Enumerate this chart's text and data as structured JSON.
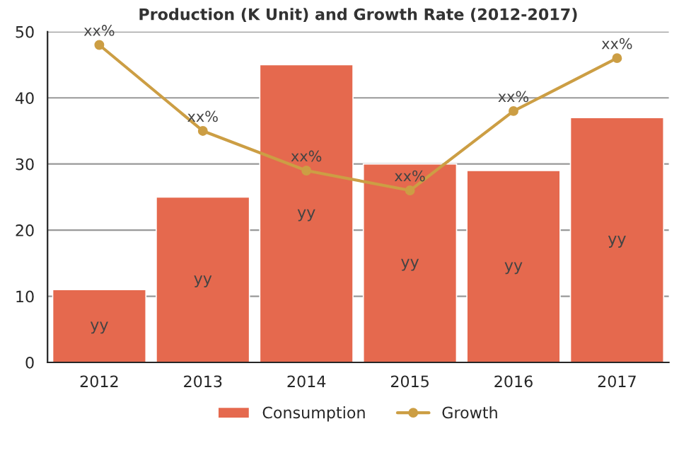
{
  "chart_data": {
    "type": "bar",
    "title": "Production (K Unit) and Growth Rate (2012-2017)",
    "categories": [
      "2012",
      "2013",
      "2014",
      "2015",
      "2016",
      "2017"
    ],
    "series": [
      {
        "name": "Consumption",
        "color": "#e5694e",
        "values": [
          11,
          25,
          45,
          30,
          29,
          37
        ],
        "value_labels": [
          "yy",
          "yy",
          "yy",
          "yy",
          "yy",
          "yy"
        ]
      },
      {
        "name": "Growth",
        "type": "line",
        "color": "#cc9e44",
        "values": [
          48,
          35,
          29,
          26,
          38,
          46
        ],
        "value_labels": [
          "xx%",
          "xx%",
          "xx%",
          "xx%",
          "xx%",
          "xx%"
        ],
        "marker": "circle"
      }
    ],
    "ylim": [
      0,
      50
    ],
    "yticks": [
      0,
      10,
      20,
      30,
      40,
      50
    ],
    "grid": "y",
    "legend": "bottom"
  }
}
